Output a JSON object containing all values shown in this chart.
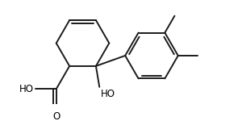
{
  "bg_color": "#ffffff",
  "line_color": "#1a1a1a",
  "line_width": 1.4,
  "text_color": "#000000",
  "font_size": 8.5,
  "figsize": [
    3.0,
    1.5
  ],
  "dpi": 100,
  "xlim": [
    0,
    300
  ],
  "ylim": [
    0,
    150
  ]
}
